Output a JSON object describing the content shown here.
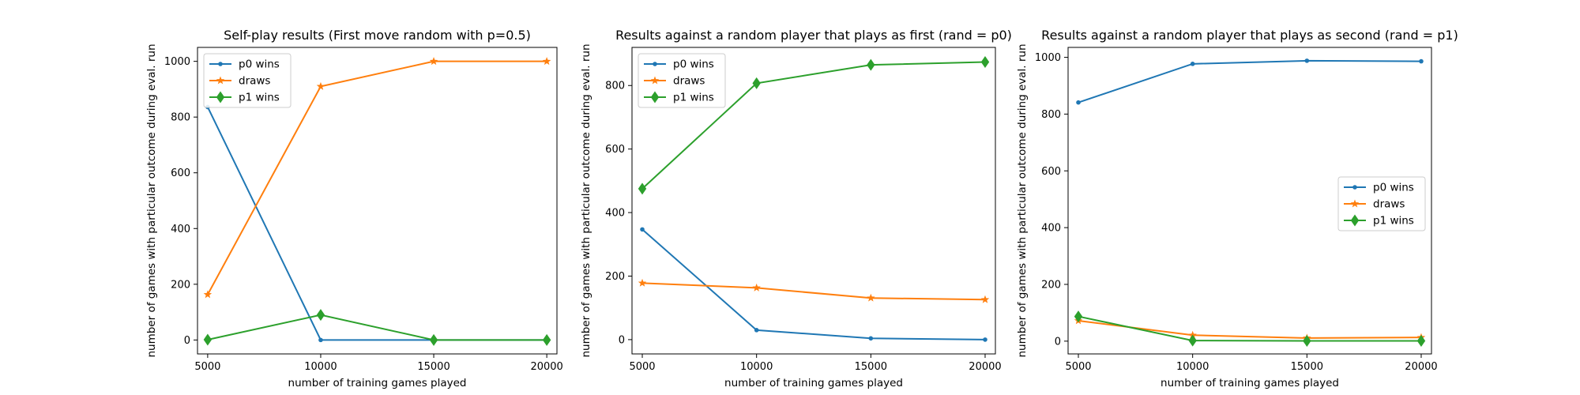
{
  "chart_data": [
    {
      "type": "line",
      "title": "Self-play results (First move random with p=0.5)",
      "xlabel": "number of training games played",
      "ylabel": "number of games with particular outcome during eval. run",
      "x": [
        5000,
        10000,
        15000,
        20000
      ],
      "xticks": [
        5000,
        10000,
        15000,
        20000
      ],
      "yticks": [
        0,
        200,
        400,
        600,
        800,
        1000
      ],
      "xlim": [
        4550,
        20450
      ],
      "ylim": [
        -50,
        1050
      ],
      "grid": false,
      "legend_position": "upper left",
      "series": [
        {
          "name": "p0 wins",
          "values": [
            836,
            0,
            0,
            0
          ],
          "color": "#1f77b4",
          "marker": "point"
        },
        {
          "name": "draws",
          "values": [
            163,
            910,
            1000,
            1000
          ],
          "color": "#ff7f0e",
          "marker": "star"
        },
        {
          "name": "p1 wins",
          "values": [
            1,
            90,
            0,
            0
          ],
          "color": "#2ca02c",
          "marker": "diamond"
        }
      ]
    },
    {
      "type": "line",
      "title": "Results against a random player that plays as first (rand = p0)",
      "xlabel": "number of training games played",
      "ylabel": "number of games with particular outcome during eval. run",
      "x": [
        5000,
        10000,
        15000,
        20000
      ],
      "xticks": [
        5000,
        10000,
        15000,
        20000
      ],
      "yticks": [
        0,
        200,
        400,
        600,
        800
      ],
      "xlim": [
        4550,
        20450
      ],
      "ylim": [
        -45,
        920
      ],
      "grid": false,
      "legend_position": "upper left",
      "series": [
        {
          "name": "p0 wins",
          "values": [
            347,
            30,
            4,
            0
          ],
          "color": "#1f77b4",
          "marker": "point"
        },
        {
          "name": "draws",
          "values": [
            178,
            163,
            131,
            126
          ],
          "color": "#ff7f0e",
          "marker": "star"
        },
        {
          "name": "p1 wins",
          "values": [
            475,
            807,
            865,
            874
          ],
          "color": "#2ca02c",
          "marker": "diamond"
        }
      ]
    },
    {
      "type": "line",
      "title": "Results against a random player that plays as second (rand = p1)",
      "xlabel": "number of training games played",
      "ylabel": "number of games with particular outcome during eval. run",
      "x": [
        5000,
        10000,
        15000,
        20000
      ],
      "xticks": [
        5000,
        10000,
        15000,
        20000
      ],
      "yticks": [
        0,
        200,
        400,
        600,
        800,
        1000
      ],
      "xlim": [
        4550,
        20450
      ],
      "ylim": [
        -45,
        1035
      ],
      "grid": false,
      "legend_position": "center right",
      "series": [
        {
          "name": "p0 wins",
          "values": [
            841,
            977,
            988,
            986
          ],
          "color": "#1f77b4",
          "marker": "point"
        },
        {
          "name": "draws",
          "values": [
            72,
            21,
            11,
            13
          ],
          "color": "#ff7f0e",
          "marker": "star"
        },
        {
          "name": "p1 wins",
          "values": [
            87,
            2,
            1,
            1
          ],
          "color": "#2ca02c",
          "marker": "diamond"
        }
      ]
    }
  ]
}
